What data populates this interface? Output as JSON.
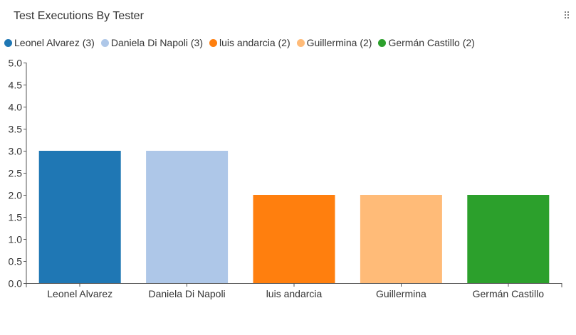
{
  "widget": {
    "title": "Test Executions By Tester",
    "handle_icon": "drag-handle-icon"
  },
  "legend": [
    {
      "label": "Leonel Alvarez (3)",
      "color": "#1f77b4"
    },
    {
      "label": "Daniela Di Napoli (3)",
      "color": "#aec7e8"
    },
    {
      "label": "luis andarcia (2)",
      "color": "#ff7f0e"
    },
    {
      "label": "Guillermina (2)",
      "color": "#ffbb78"
    },
    {
      "label": "Germán Castillo (2)",
      "color": "#2ca02c"
    }
  ],
  "chart_data": {
    "type": "bar",
    "title": "Test Executions By Tester",
    "xlabel": "",
    "ylabel": "",
    "categories": [
      "Leonel Alvarez",
      "Daniela Di Napoli",
      "luis andarcia",
      "Guillermina",
      "Germán Castillo"
    ],
    "values": [
      3,
      3,
      2,
      2,
      2
    ],
    "colors": [
      "#1f77b4",
      "#aec7e8",
      "#ff7f0e",
      "#ffbb78",
      "#2ca02c"
    ],
    "ylim": [
      0,
      5
    ],
    "yticks": [
      "0.0",
      "0.5",
      "1.0",
      "1.5",
      "2.0",
      "2.5",
      "3.0",
      "3.5",
      "4.0",
      "4.5",
      "5.0"
    ],
    "grid": false,
    "legend_position": "top"
  }
}
